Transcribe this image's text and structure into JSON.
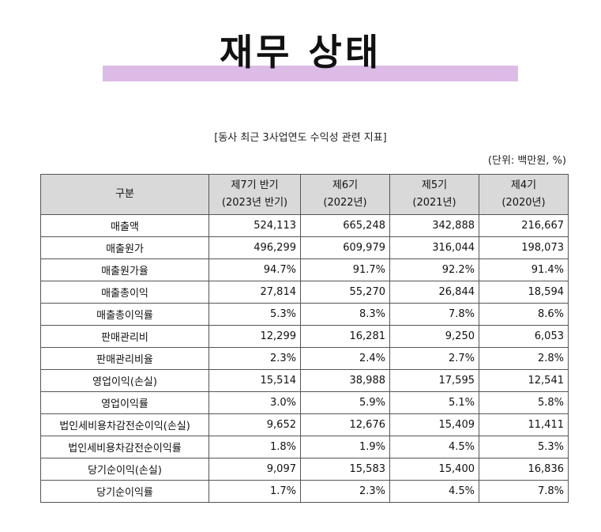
{
  "title": "재무 상태",
  "caption": "[동사 최근 3사업연도 수익성 관련 지표]",
  "unit": "(단위: 백만원, %)",
  "colors": {
    "title_highlight": "#dcbbe6",
    "header_background": "#d9d9d9"
  },
  "table": {
    "headers": [
      {
        "line1": "구분",
        "line2": ""
      },
      {
        "line1": "제7기 반기",
        "line2": "(2023년 반기)"
      },
      {
        "line1": "제6기",
        "line2": "(2022년)"
      },
      {
        "line1": "제5기",
        "line2": "(2021년)"
      },
      {
        "line1": "제4기",
        "line2": "(2020년)"
      }
    ],
    "rows": [
      {
        "label": "매출액",
        "values": [
          "524,113",
          "665,248",
          "342,888",
          "216,667"
        ]
      },
      {
        "label": "매출원가",
        "values": [
          "496,299",
          "609,979",
          "316,044",
          "198,073"
        ]
      },
      {
        "label": "매출원가율",
        "values": [
          "94.7%",
          "91.7%",
          "92.2%",
          "91.4%"
        ]
      },
      {
        "label": "매출총이익",
        "values": [
          "27,814",
          "55,270",
          "26,844",
          "18,594"
        ]
      },
      {
        "label": "매출총이익률",
        "values": [
          "5.3%",
          "8.3%",
          "7.8%",
          "8.6%"
        ]
      },
      {
        "label": "판매관리비",
        "values": [
          "12,299",
          "16,281",
          "9,250",
          "6,053"
        ]
      },
      {
        "label": "판매관리비율",
        "values": [
          "2.3%",
          "2.4%",
          "2.7%",
          "2.8%"
        ]
      },
      {
        "label": "영업이익(손실)",
        "values": [
          "15,514",
          "38,988",
          "17,595",
          "12,541"
        ]
      },
      {
        "label": "영업이익률",
        "values": [
          "3.0%",
          "5.9%",
          "5.1%",
          "5.8%"
        ]
      },
      {
        "label": "법인세비용차감전순이익(손실)",
        "values": [
          "9,652",
          "12,676",
          "15,409",
          "11,411"
        ]
      },
      {
        "label": "법인세비용차감전순이익률",
        "values": [
          "1.8%",
          "1.9%",
          "4.5%",
          "5.3%"
        ]
      },
      {
        "label": "당기순이익(손실)",
        "values": [
          "9,097",
          "15,583",
          "15,400",
          "16,836"
        ]
      },
      {
        "label": "당기순이익률",
        "values": [
          "1.7%",
          "2.3%",
          "4.5%",
          "7.8%"
        ]
      }
    ]
  }
}
